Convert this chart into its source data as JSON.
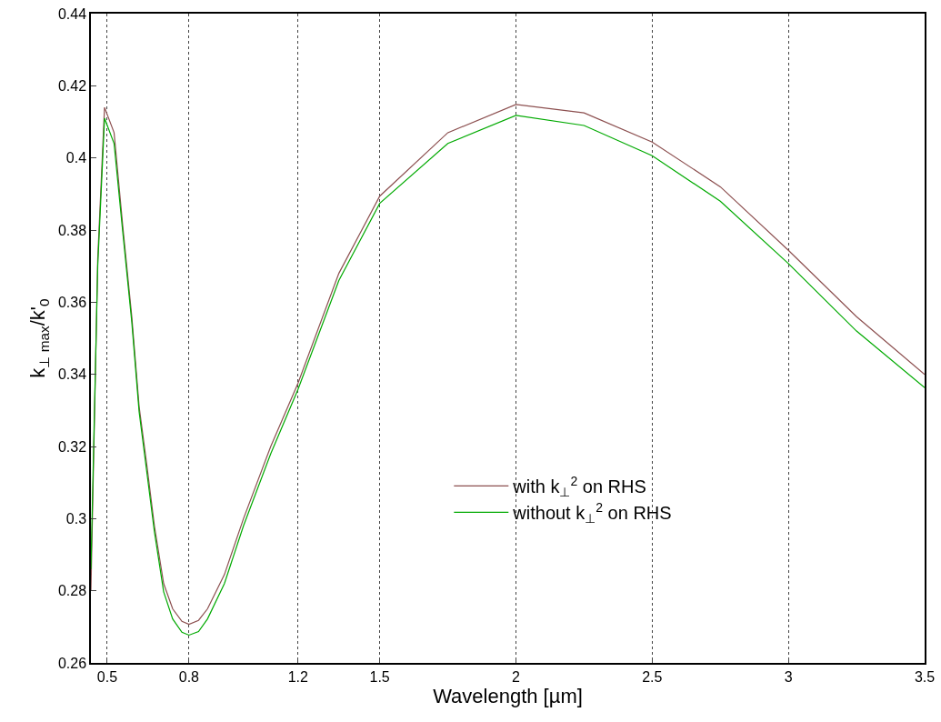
{
  "chart_data": {
    "type": "line",
    "xlabel": "Wavelength [µm]",
    "ylabel": "k$_{⊥ max}$/k'$_{0}$",
    "x": [
      0.44,
      0.465,
      0.49,
      0.525,
      0.557,
      0.59,
      0.617,
      0.645,
      0.673,
      0.707,
      0.74,
      0.774,
      0.8,
      0.835,
      0.868,
      0.93,
      1.0,
      1.1,
      1.2,
      1.35,
      1.5,
      1.75,
      2.0,
      2.25,
      2.5,
      2.75,
      3.0,
      3.25,
      3.5
    ],
    "series": [
      {
        "name": "with k$_{⊥}$$^{2}$ on RHS",
        "color": "#8c4f4f",
        "values": [
          0.28,
          0.372,
          0.414,
          0.407,
          0.381,
          0.356,
          0.331,
          0.315,
          0.298,
          0.282,
          0.275,
          0.2715,
          0.2707,
          0.2718,
          0.275,
          0.2845,
          0.3,
          0.32,
          0.3375,
          0.368,
          0.3894,
          0.407,
          0.4148,
          0.4125,
          0.4044,
          0.392,
          0.3744,
          0.356,
          0.34
        ]
      },
      {
        "name": "without k$_{⊥}$$^{2}$ on RHS",
        "color": "#00aa00",
        "values": [
          0.286,
          0.37,
          0.411,
          0.404,
          0.3794,
          0.3545,
          0.3296,
          0.313,
          0.2964,
          0.2797,
          0.2722,
          0.2685,
          0.2677,
          0.2687,
          0.2722,
          0.282,
          0.298,
          0.318,
          0.3358,
          0.366,
          0.3874,
          0.404,
          0.4118,
          0.409,
          0.4006,
          0.388,
          0.3707,
          0.352,
          0.3363
        ]
      }
    ],
    "xlim": [
      0.44,
      3.5
    ],
    "xticks": [
      0.5,
      0.8,
      1.2,
      1.5,
      2,
      2.5,
      3,
      3.5
    ],
    "ylim": [
      0.26,
      0.44
    ],
    "yticks": [
      0.26,
      0.28,
      0.3,
      0.32,
      0.34,
      0.36,
      0.38,
      0.4,
      0.42,
      0.44
    ],
    "grid": "x",
    "legend": "bottom",
    "marker": "none",
    "line_style": "solid"
  }
}
